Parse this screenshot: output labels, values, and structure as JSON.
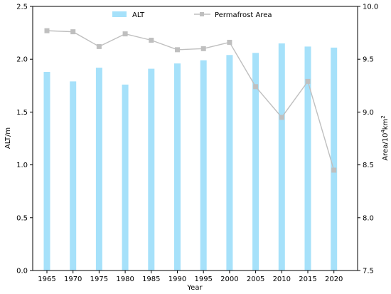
{
  "chart_data": {
    "type": "bar",
    "categories": [
      "1965",
      "1970",
      "1975",
      "1980",
      "1985",
      "1990",
      "1995",
      "2000",
      "2005",
      "2010",
      "2015",
      "2020"
    ],
    "xlabel": "Year",
    "ylabel_left": "ALT/m",
    "ylabel_right": "Area/10",
    "ylabel_right_sup": "4",
    "ylabel_right_unit": "km",
    "ylabel_right_sup2": "2",
    "ylim_left": [
      0,
      2.5
    ],
    "ylim_right": [
      7.5,
      10.0
    ],
    "yticks_left": [
      "0.0",
      "0.5",
      "1.0",
      "1.5",
      "2.0",
      "2.5"
    ],
    "yticks_right": [
      "7.5",
      "8.0",
      "8.5",
      "9.0",
      "9.5",
      "10.0"
    ],
    "grid": false,
    "legend_placement": "top-center",
    "series": [
      {
        "name": "ALT",
        "type": "bar",
        "axis": "left",
        "color": "#a6e1fa",
        "values": [
          1.88,
          1.79,
          1.92,
          1.76,
          1.91,
          1.96,
          1.99,
          2.04,
          2.06,
          2.15,
          2.12,
          2.11
        ]
      },
      {
        "name": "Permafrost Area",
        "type": "line",
        "axis": "right",
        "color": "#bfbfbf",
        "marker": "square",
        "values": [
          9.77,
          9.76,
          9.62,
          9.74,
          9.68,
          9.59,
          9.6,
          9.66,
          9.24,
          8.95,
          9.29,
          8.45
        ]
      }
    ]
  }
}
